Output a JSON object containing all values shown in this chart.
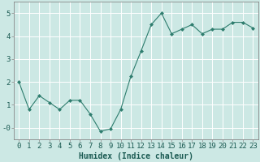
{
  "x": [
    0,
    1,
    2,
    3,
    4,
    5,
    6,
    7,
    8,
    9,
    10,
    11,
    12,
    13,
    14,
    15,
    16,
    17,
    18,
    19,
    20,
    21,
    22,
    23
  ],
  "y": [
    2.0,
    0.8,
    1.4,
    1.1,
    0.8,
    1.2,
    1.2,
    0.6,
    -0.15,
    -0.05,
    0.8,
    2.25,
    3.35,
    4.5,
    5.0,
    4.1,
    4.3,
    4.5,
    4.1,
    4.3,
    4.3,
    4.6,
    4.6,
    4.35
  ],
  "xlabel": "Humidex (Indice chaleur)",
  "ylim": [
    -0.5,
    5.5
  ],
  "xlim": [
    -0.5,
    23.5
  ],
  "yticks": [
    0,
    1,
    2,
    3,
    4,
    5
  ],
  "ytick_labels": [
    "-0",
    "1",
    "2",
    "3",
    "4",
    "5"
  ],
  "xticks": [
    0,
    1,
    2,
    3,
    4,
    5,
    6,
    7,
    8,
    9,
    10,
    11,
    12,
    13,
    14,
    15,
    16,
    17,
    18,
    19,
    20,
    21,
    22,
    23
  ],
  "line_color": "#2e7d6e",
  "marker": "D",
  "marker_size": 2.0,
  "bg_color": "#cce8e4",
  "grid_color": "#ffffff",
  "xlabel_fontsize": 7,
  "tick_fontsize": 6.5,
  "spine_color": "#888888"
}
